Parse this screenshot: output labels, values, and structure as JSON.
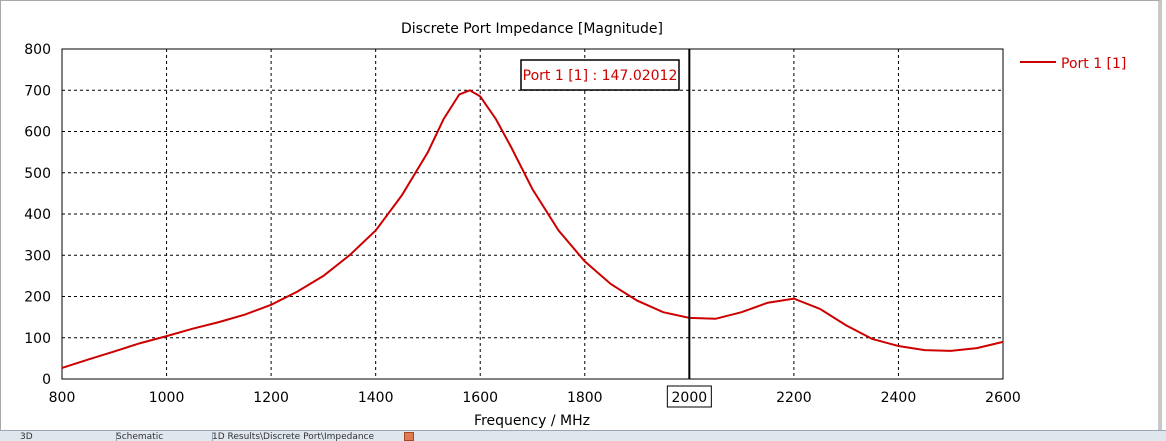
{
  "chart_data": {
    "type": "line",
    "title": "Discrete Port Impedance [Magnitude]",
    "xlabel": "Frequency / MHz",
    "ylabel": "",
    "xlim": [
      800,
      2600
    ],
    "ylim": [
      0,
      800
    ],
    "x_ticks": [
      "800",
      "1000",
      "1200",
      "1400",
      "1600",
      "1800",
      "2000",
      "2200",
      "2400",
      "2600"
    ],
    "y_ticks": [
      "0",
      "100",
      "200",
      "300",
      "400",
      "500",
      "600",
      "700",
      "800"
    ],
    "grid": true,
    "legend": "top-right",
    "series": [
      {
        "name": "Port 1 [1]",
        "color": "#cc0000",
        "x": [
          800,
          850,
          900,
          950,
          1000,
          1050,
          1100,
          1150,
          1200,
          1250,
          1300,
          1350,
          1400,
          1450,
          1500,
          1530,
          1560,
          1580,
          1600,
          1630,
          1660,
          1700,
          1750,
          1800,
          1850,
          1900,
          1950,
          2000,
          2050,
          2100,
          2150,
          2200,
          2250,
          2300,
          2350,
          2400,
          2450,
          2500,
          2550,
          2600
        ],
        "y": [
          27,
          47,
          67,
          87,
          104,
          122,
          138,
          156,
          180,
          212,
          250,
          300,
          360,
          445,
          550,
          630,
          690,
          700,
          685,
          630,
          560,
          460,
          360,
          285,
          230,
          190,
          162,
          148,
          146,
          162,
          185,
          195,
          170,
          130,
          97,
          80,
          70,
          68,
          75,
          90
        ]
      }
    ],
    "marker": {
      "x": 2000,
      "x_label": "2000",
      "readout": "Port 1 [1] : 147.02012"
    }
  },
  "tabs": [
    {
      "label": "3D"
    },
    {
      "label": "Schematic"
    },
    {
      "label": "1D Results\\Discrete Port\\Impedance"
    }
  ]
}
